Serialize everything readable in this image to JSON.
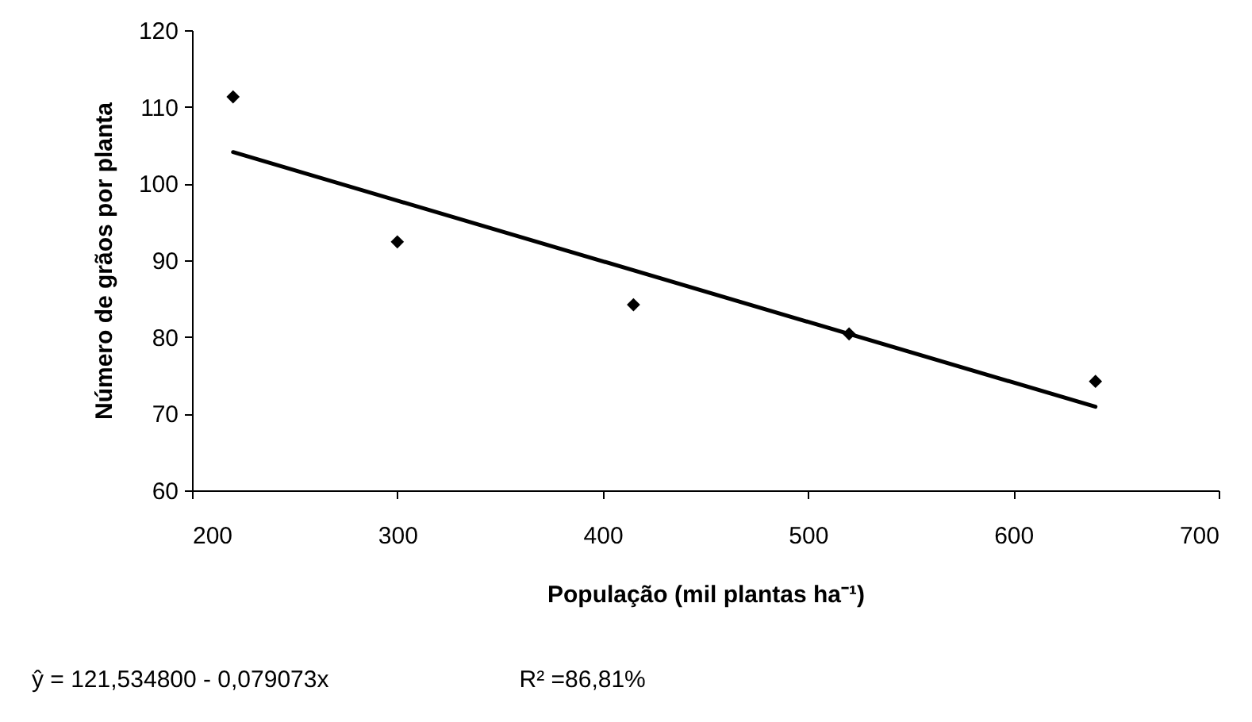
{
  "chart_data": {
    "type": "scatter",
    "xlabel": "População (mil plantas ha⁻¹)",
    "ylabel": "Número de grãos por planta",
    "xlim": [
      200,
      700
    ],
    "xticks": [
      200,
      300,
      400,
      500,
      600,
      700
    ],
    "ylim": [
      60,
      120
    ],
    "yticks": [
      60,
      70,
      80,
      90,
      100,
      110,
      120
    ],
    "grid": false,
    "marker": "diamond",
    "series": [
      {
        "color": "#000000",
        "x": [
          220,
          300,
          415,
          520,
          640
        ],
        "values": [
          111.3,
          92.4,
          84.2,
          80.4,
          74.2
        ]
      },
      {
        "type": "line",
        "color": "#000000",
        "x": [
          220,
          640
        ],
        "values": [
          104.1,
          70.9
        ],
        "marker": "none",
        "line_style": "solid"
      }
    ],
    "annotations": [
      "ŷ = 121,534800 - 0,079073x",
      "R² =86,81%"
    ]
  }
}
